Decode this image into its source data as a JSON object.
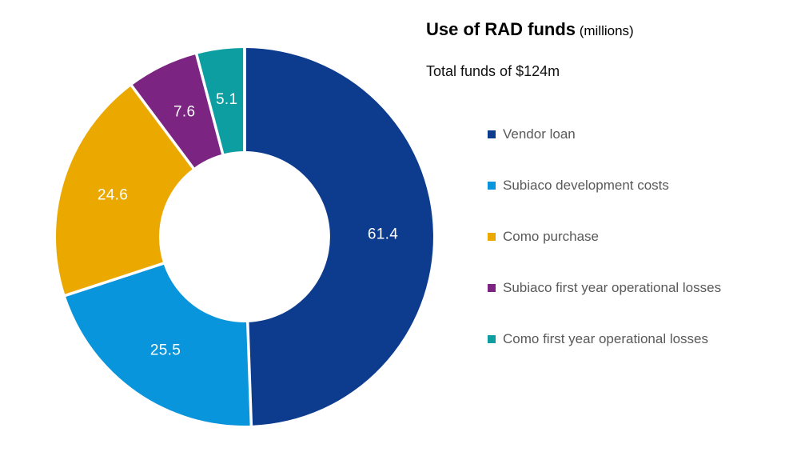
{
  "title": {
    "main": "Use of RAD funds",
    "suffix": " (millions)"
  },
  "subtitle": "Total funds of $124m",
  "chart_data": {
    "type": "pie",
    "subtype": "donut",
    "title": "Use of RAD funds (millions)",
    "subtitle": "Total funds of $124m",
    "total_label": "Total funds of $124m",
    "total": 124,
    "unit": "millions",
    "start_angle_deg": 0,
    "direction": "clockwise",
    "legend_position": "right",
    "label_color": "#FFFFFF",
    "series": [
      {
        "label": "Vendor loan",
        "value": 61.4,
        "display": "61.4",
        "color": "#0D3C8F"
      },
      {
        "label": "Subiaco development costs",
        "value": 25.5,
        "display": "25.5",
        "color": "#0995DB"
      },
      {
        "label": "Como purchase",
        "value": 24.6,
        "display": "24.6",
        "color": "#EBA900"
      },
      {
        "label": "Subiaco first year operational losses",
        "value": 7.6,
        "display": "7.6",
        "color": "#7B2481"
      },
      {
        "label": "Como first year operational losses",
        "value": 5.1,
        "display": "5.1",
        "color": "#0C9EA0"
      }
    ],
    "legend_text_color": "#595959",
    "gap_color": "#FFFFFF"
  }
}
